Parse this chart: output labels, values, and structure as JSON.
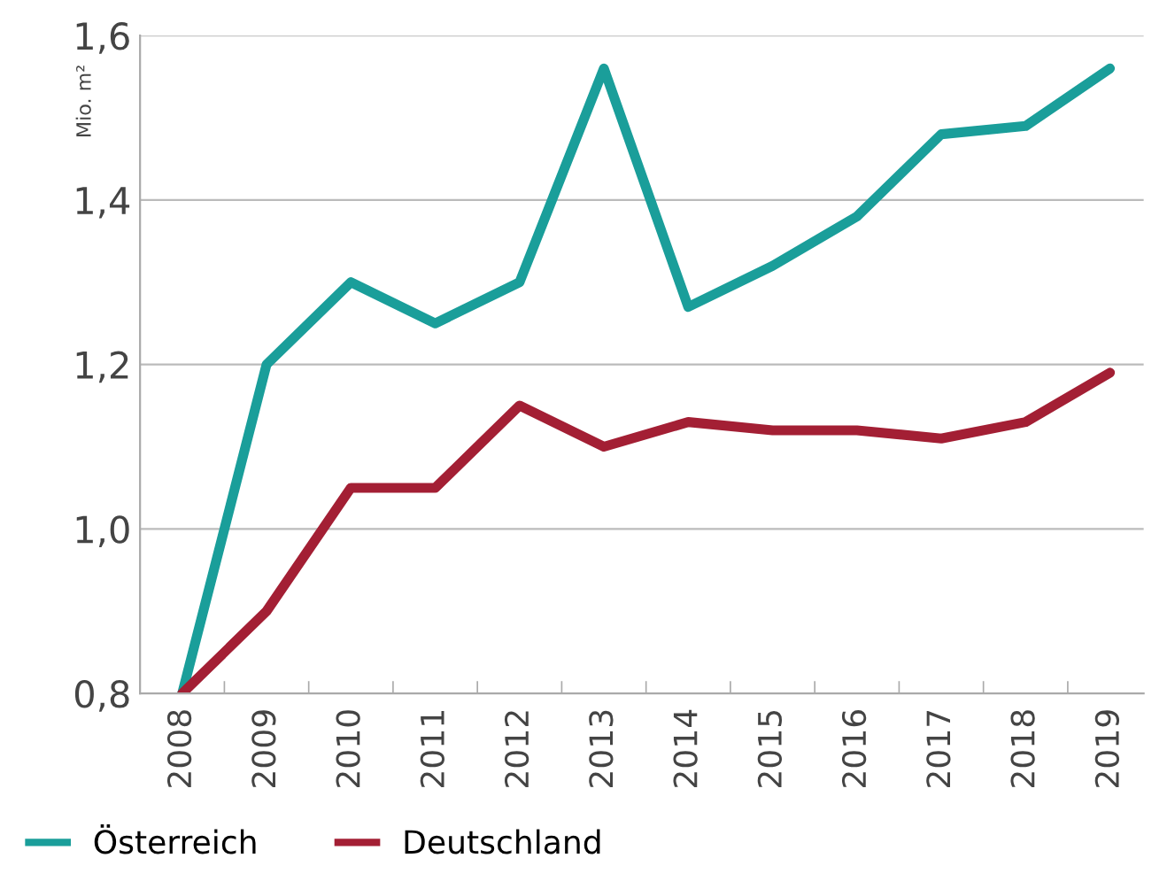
{
  "chart_data": {
    "type": "line",
    "ylabel": "Mio. m²",
    "categories": [
      "2008",
      "2009",
      "2010",
      "2011",
      "2012",
      "2013",
      "2014",
      "2015",
      "2016",
      "2017",
      "2018",
      "2019"
    ],
    "series": [
      {
        "name": "Österreich",
        "color": "#1a9e9a",
        "values": [
          0.8,
          1.2,
          1.3,
          1.25,
          1.3,
          1.56,
          1.27,
          1.32,
          1.38,
          1.48,
          1.49,
          1.56
        ]
      },
      {
        "name": "Deutschland",
        "color": "#a31f34",
        "values": [
          0.8,
          0.9,
          1.05,
          1.05,
          1.15,
          1.1,
          1.13,
          1.12,
          1.12,
          1.11,
          1.13,
          1.19
        ]
      }
    ],
    "ylim": [
      0.8,
      1.6
    ],
    "yticks": [
      {
        "value": 0.8,
        "label": "0,8"
      },
      {
        "value": 1.0,
        "label": "1,0"
      },
      {
        "value": 1.2,
        "label": "1,2"
      },
      {
        "value": 1.4,
        "label": "1,4"
      },
      {
        "value": 1.6,
        "label": "1,6"
      }
    ],
    "grid": "y",
    "legend": "bottom left",
    "marker": "none",
    "line_style": "solid"
  }
}
